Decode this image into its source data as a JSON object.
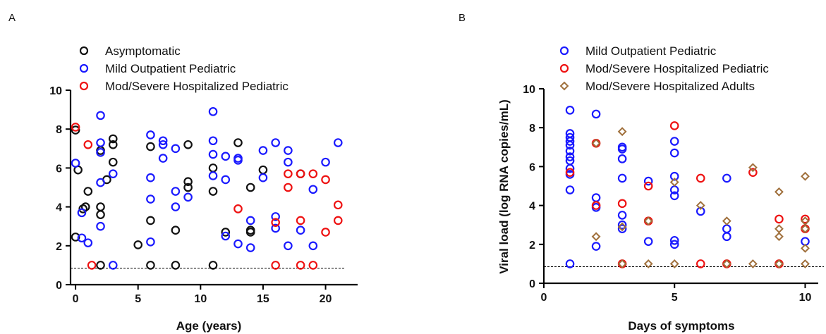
{
  "colors": {
    "asymptomatic": "#111111",
    "mild": "#1a1aff",
    "severe_ped": "#ee1111",
    "severe_adult": "#a0703c"
  },
  "chart_data": [
    {
      "panel": "A",
      "type": "scatter",
      "xlabel": "Age (years)",
      "ylabel": "",
      "xlim": [
        -0.4,
        22
      ],
      "ylim": [
        0,
        10
      ],
      "xticks": [
        0,
        5,
        10,
        15,
        20
      ],
      "yticks": [
        0,
        2,
        4,
        6,
        8,
        10
      ],
      "detection_limit": 0.85,
      "legend_placement": "top-left",
      "grid": false,
      "series": [
        {
          "name": "Asymptomatic",
          "marker": "circle",
          "color": "#111111",
          "points": [
            [
              0,
              2.45
            ],
            [
              0,
              7.95
            ],
            [
              0.2,
              5.9
            ],
            [
              0.6,
              3.9
            ],
            [
              0.8,
              4.0
            ],
            [
              1,
              4.8
            ],
            [
              2,
              6.9
            ],
            [
              2,
              4.0
            ],
            [
              2,
              3.6
            ],
            [
              2,
              1.0
            ],
            [
              2.5,
              5.4
            ],
            [
              3,
              7.5
            ],
            [
              3,
              7.2
            ],
            [
              3,
              6.3
            ],
            [
              5,
              2.05
            ],
            [
              6,
              7.1
            ],
            [
              6,
              3.3
            ],
            [
              6,
              1.0
            ],
            [
              8,
              2.8
            ],
            [
              8,
              1.0
            ],
            [
              9,
              7.2
            ],
            [
              9,
              5.3
            ],
            [
              9,
              5.0
            ],
            [
              11,
              6.0
            ],
            [
              11,
              4.8
            ],
            [
              11,
              1.0
            ],
            [
              12,
              2.7
            ],
            [
              13,
              7.3
            ],
            [
              14,
              5.0
            ],
            [
              14,
              2.8
            ],
            [
              14,
              2.7
            ],
            [
              15,
              5.9
            ],
            [
              18,
              5.7
            ]
          ]
        },
        {
          "name": "Mild Outpatient Pediatric",
          "marker": "circle",
          "color": "#1a1aff",
          "points": [
            [
              0,
              6.25
            ],
            [
              0.5,
              3.7
            ],
            [
              0.5,
              2.4
            ],
            [
              1,
              2.15
            ],
            [
              2,
              8.7
            ],
            [
              2,
              7.3
            ],
            [
              2,
              6.8
            ],
            [
              2,
              5.25
            ],
            [
              2,
              3.0
            ],
            [
              3,
              5.7
            ],
            [
              3,
              1.0
            ],
            [
              6,
              7.7
            ],
            [
              6,
              5.5
            ],
            [
              6,
              4.4
            ],
            [
              6,
              2.2
            ],
            [
              7,
              7.4
            ],
            [
              7,
              7.2
            ],
            [
              7,
              6.5
            ],
            [
              8,
              7.0
            ],
            [
              8,
              4.8
            ],
            [
              8,
              4.0
            ],
            [
              9,
              4.5
            ],
            [
              11,
              8.9
            ],
            [
              11,
              7.4
            ],
            [
              11,
              6.7
            ],
            [
              11,
              5.6
            ],
            [
              12,
              6.6
            ],
            [
              12,
              5.4
            ],
            [
              12,
              2.5
            ],
            [
              13,
              6.5
            ],
            [
              13,
              6.4
            ],
            [
              13,
              2.1
            ],
            [
              14,
              3.3
            ],
            [
              14,
              1.9
            ],
            [
              15,
              6.9
            ],
            [
              15,
              5.5
            ],
            [
              16,
              7.3
            ],
            [
              16,
              3.5
            ],
            [
              16,
              2.9
            ],
            [
              17,
              6.9
            ],
            [
              17,
              6.3
            ],
            [
              17,
              2.0
            ],
            [
              18,
              2.8
            ],
            [
              19,
              4.9
            ],
            [
              19,
              2.0
            ],
            [
              20,
              6.3
            ],
            [
              21,
              7.3
            ]
          ]
        },
        {
          "name": "Mod/Severe Hospitalized Pediatric",
          "marker": "circle",
          "color": "#ee1111",
          "points": [
            [
              0,
              8.1
            ],
            [
              1,
              7.2
            ],
            [
              1.3,
              1.0
            ],
            [
              13,
              3.9
            ],
            [
              16,
              3.2
            ],
            [
              16,
              1.0
            ],
            [
              17,
              5.7
            ],
            [
              17,
              5.0
            ],
            [
              18,
              5.7
            ],
            [
              18,
              3.3
            ],
            [
              18,
              1.0
            ],
            [
              19,
              5.7
            ],
            [
              19,
              1.0
            ],
            [
              20,
              5.4
            ],
            [
              20,
              2.7
            ],
            [
              21,
              4.1
            ],
            [
              21,
              3.3
            ]
          ]
        }
      ]
    },
    {
      "panel": "B",
      "type": "scatter",
      "xlabel": "Days of symptoms",
      "ylabel": "Viral load (log RNA copies/mL)",
      "xlim": [
        0,
        10.5
      ],
      "ylim": [
        0,
        10
      ],
      "xticks": [
        0,
        5,
        10
      ],
      "yticks": [
        0,
        2,
        4,
        6,
        8,
        10
      ],
      "detection_limit": 0.85,
      "legend_placement": "top-right",
      "grid": false,
      "series": [
        {
          "name": "Mild Outpatient Pediatric",
          "marker": "circle",
          "color": "#1a1aff",
          "points": [
            [
              1,
              8.9
            ],
            [
              1,
              7.7
            ],
            [
              1,
              7.5
            ],
            [
              1,
              7.3
            ],
            [
              1,
              7.1
            ],
            [
              1,
              6.8
            ],
            [
              1,
              6.5
            ],
            [
              1,
              6.3
            ],
            [
              1,
              5.9
            ],
            [
              1,
              5.6
            ],
            [
              1,
              4.8
            ],
            [
              1,
              1.0
            ],
            [
              2,
              8.7
            ],
            [
              2,
              4.4
            ],
            [
              2,
              3.9
            ],
            [
              2,
              1.9
            ],
            [
              3,
              7.0
            ],
            [
              3,
              6.9
            ],
            [
              3,
              6.4
            ],
            [
              3,
              5.4
            ],
            [
              3,
              3.5
            ],
            [
              3,
              3.0
            ],
            [
              3,
              2.8
            ],
            [
              4,
              5.25
            ],
            [
              4,
              2.15
            ],
            [
              5,
              7.3
            ],
            [
              5,
              6.7
            ],
            [
              5,
              5.5
            ],
            [
              5,
              4.8
            ],
            [
              5,
              4.5
            ],
            [
              5,
              2.2
            ],
            [
              5,
              2.0
            ],
            [
              6,
              3.7
            ],
            [
              7,
              5.4
            ],
            [
              7,
              2.8
            ],
            [
              7,
              2.4
            ],
            [
              10,
              2.15
            ]
          ]
        },
        {
          "name": "Mod/Severe Hospitalized Pediatric",
          "marker": "circle",
          "color": "#ee1111",
          "points": [
            [
              1,
              5.7
            ],
            [
              2,
              7.2
            ],
            [
              2,
              4.0
            ],
            [
              3,
              4.1
            ],
            [
              3,
              1.0
            ],
            [
              4,
              5.0
            ],
            [
              4,
              3.2
            ],
            [
              5,
              8.1
            ],
            [
              6,
              5.4
            ],
            [
              6,
              1.0
            ],
            [
              7,
              1.0
            ],
            [
              8,
              5.7
            ],
            [
              9,
              3.3
            ],
            [
              9,
              1.0
            ],
            [
              10,
              3.3
            ],
            [
              10,
              2.8
            ]
          ]
        },
        {
          "name": "Mod/Severe Hospitalized Adults",
          "marker": "diamond",
          "color": "#a0703c",
          "points": [
            [
              2,
              7.2
            ],
            [
              2,
              2.4
            ],
            [
              3,
              7.8
            ],
            [
              3,
              2.9
            ],
            [
              3,
              1.0
            ],
            [
              4,
              3.2
            ],
            [
              4,
              1.0
            ],
            [
              5,
              5.2
            ],
            [
              5,
              1.0
            ],
            [
              6,
              4.0
            ],
            [
              7,
              3.2
            ],
            [
              7,
              1.0
            ],
            [
              8,
              5.95
            ],
            [
              8,
              1.0
            ],
            [
              9,
              4.7
            ],
            [
              9,
              2.8
            ],
            [
              9,
              2.4
            ],
            [
              9,
              1.0
            ],
            [
              10,
              5.5
            ],
            [
              10,
              3.2
            ],
            [
              10,
              2.8
            ],
            [
              10,
              1.8
            ],
            [
              10,
              1.0
            ]
          ]
        }
      ]
    }
  ]
}
